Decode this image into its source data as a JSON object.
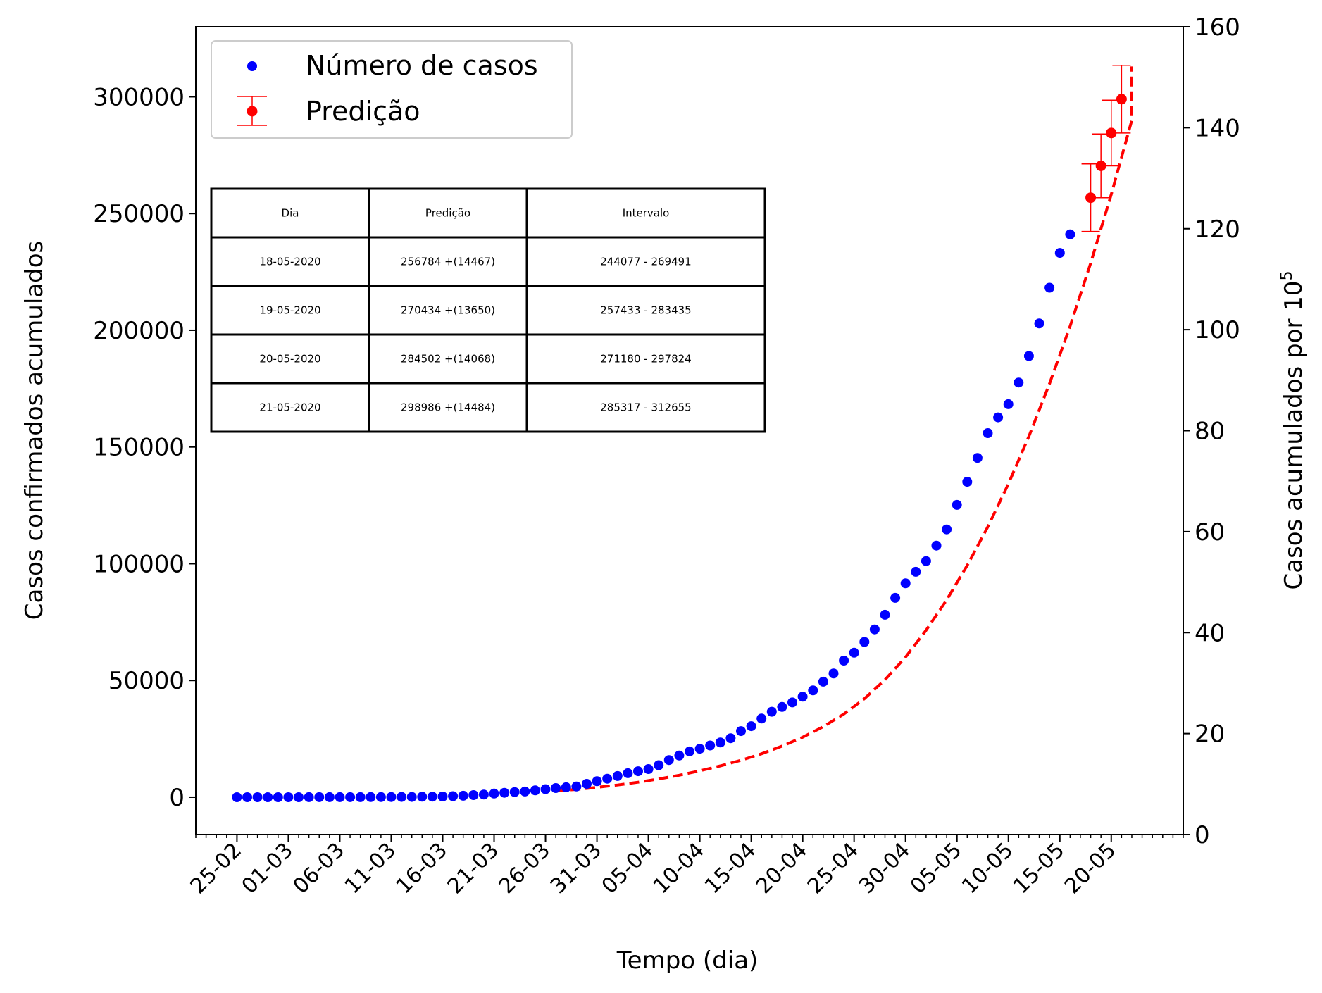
{
  "chart_data": {
    "type": "scatter",
    "xlabel": "Tempo (dia)",
    "ylabel": "Casos confirmados acumulados",
    "y2label": "Casos acumulados por 10",
    "y2label_sup": "5",
    "xlim": [
      "2020-02-21",
      "2020-05-27"
    ],
    "ylim": [
      -16000,
      330000
    ],
    "y2lim": [
      0,
      160
    ],
    "x_ticks": [
      "25-02",
      "01-03",
      "06-03",
      "11-03",
      "16-03",
      "21-03",
      "26-03",
      "31-03",
      "05-04",
      "10-04",
      "15-04",
      "20-04",
      "25-04",
      "30-04",
      "05-05",
      "10-05",
      "15-05",
      "20-05"
    ],
    "y_ticks": [
      0,
      50000,
      100000,
      150000,
      200000,
      250000,
      300000
    ],
    "y_tick_labels": [
      "0",
      "50000",
      "100000",
      "150000",
      "200000",
      "250000",
      "300000"
    ],
    "y2_ticks": [
      0,
      20,
      40,
      60,
      80,
      100,
      120,
      140,
      160
    ],
    "y2_tick_labels": [
      "0",
      "20",
      "40",
      "60",
      "80",
      "100",
      "120",
      "140",
      "160"
    ],
    "legend_position": "top-left",
    "colors": {
      "observed": "#0000ff",
      "prediction": "#ff0000",
      "fit": "#ff0000"
    },
    "series": [
      {
        "name": "Número de casos",
        "style": "points",
        "start_date": "2020-02-25",
        "values": [
          1,
          1,
          1,
          2,
          2,
          2,
          2,
          3,
          8,
          13,
          19,
          25,
          25,
          34,
          52,
          77,
          98,
          121,
          200,
          234,
          291,
          428,
          621,
          904,
          1128,
          1546,
          1891,
          2201,
          2433,
          2915,
          3417,
          3904,
          4256,
          4579,
          5717,
          6836,
          7910,
          9056,
          10278,
          11130,
          12056,
          13717,
          15927,
          17857,
          19638,
          20727,
          22169,
          23430,
          25262,
          28320,
          30425,
          33682,
          36599,
          38654,
          40581,
          43079,
          45757,
          49492,
          52995,
          58509,
          61888,
          66501,
          71886,
          78162,
          85380,
          91589,
          96559,
          101147,
          107780,
          114715,
          125218,
          135106,
          145328,
          155939,
          162699,
          168331,
          177589,
          188974,
          202918,
          218223,
          233142,
          241080
        ],
        "label": "Número de casos",
        "marker": "dot"
      },
      {
        "name": "Predição",
        "style": "errorbar",
        "points": [
          {
            "x": "2020-05-18",
            "y": 256784,
            "err": 14467
          },
          {
            "x": "2020-05-19",
            "y": 270434,
            "err": 13650
          },
          {
            "x": "2020-05-20",
            "y": 284502,
            "err": 14068
          },
          {
            "x": "2020-05-21",
            "y": 298986,
            "err": 14484
          }
        ],
        "label": "Predição",
        "marker": "dot-with-errorbar"
      },
      {
        "style": "dashed-line",
        "start_date": "2020-03-27",
        "x_step_days": 2,
        "values": [
          2800,
          3300,
          4200,
          5200,
          6400,
          7800,
          9400,
          11300,
          13400,
          15800,
          18600,
          21900,
          25700,
          30200,
          35600,
          42200,
          50300,
          60000,
          71500,
          84500,
          99300,
          115800,
          134200,
          154600,
          177100,
          201800,
          228800,
          258200,
          290000,
          313000
        ],
        "end_point": {
          "x": "2020-05-22",
          "y": 313000
        }
      }
    ],
    "table": {
      "headers": [
        "Dia",
        "Predição",
        "Intervalo"
      ],
      "rows": [
        [
          "18-05-2020",
          "256784 +(14467)",
          "244077 - 269491"
        ],
        [
          "19-05-2020",
          "270434 +(13650)",
          "257433 - 283435"
        ],
        [
          "20-05-2020",
          "284502 +(14068)",
          "271180 - 297824"
        ],
        [
          "21-05-2020",
          "298986 +(14484)",
          "285317 - 312655"
        ]
      ]
    }
  }
}
